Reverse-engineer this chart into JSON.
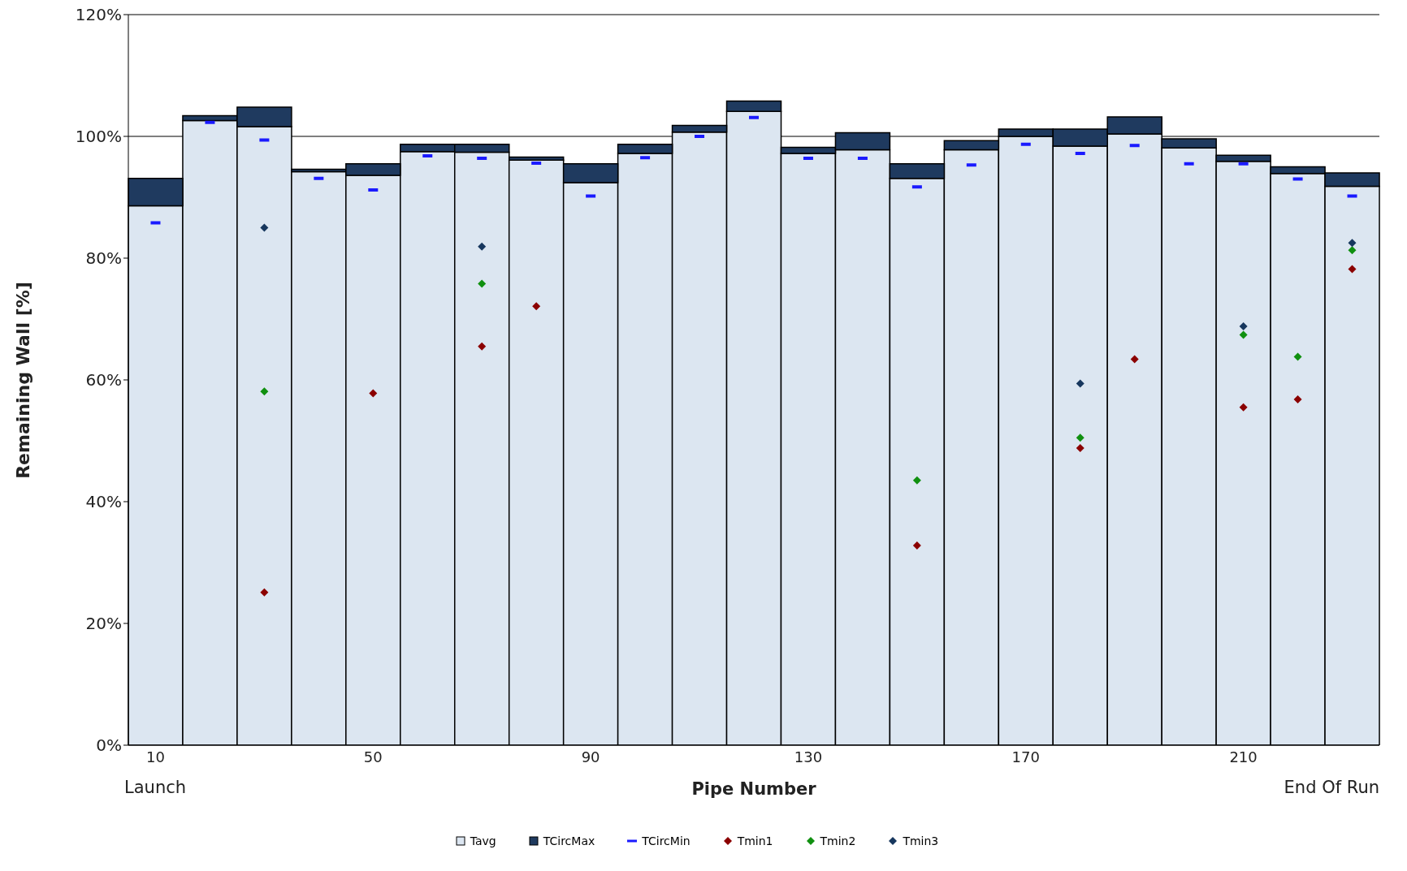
{
  "chart_data": {
    "type": "bar",
    "xlabel": "Pipe Number",
    "ylabel": "Remaining Wall [%]",
    "categories": [
      "10",
      null,
      null,
      null,
      "50",
      null,
      null,
      null,
      "90",
      null,
      null,
      null,
      "130",
      null,
      null,
      null,
      "170",
      null,
      null,
      null,
      "210",
      null,
      null
    ],
    "stacked": true,
    "series": [
      {
        "name": "Tavg",
        "color": "#dce6f1",
        "values": [
          88.6,
          102.6,
          101.6,
          94.2,
          93.6,
          97.5,
          97.4,
          96.1,
          92.4,
          97.2,
          100.7,
          104.1,
          97.2,
          97.8,
          93.1,
          97.8,
          100,
          98.4,
          100.4,
          98.1,
          95.9,
          93.9,
          91.8
        ]
      },
      {
        "name": "TCircMax",
        "color": "#1f3a5f",
        "values": [
          4.5,
          0.8,
          3.2,
          0.4,
          1.9,
          1.2,
          1.3,
          0.5,
          3.1,
          1.5,
          1.1,
          1.7,
          1.0,
          2.8,
          2.4,
          1.5,
          1.2,
          2.8,
          2.8,
          1.5,
          1.0,
          1.1,
          2.2
        ]
      },
      {
        "name": "TCircMin",
        "type": "scatter",
        "marker": "square",
        "color": "#1a1aff",
        "values": [
          85.8,
          102.3,
          99.4,
          93.1,
          91.2,
          96.8,
          96.4,
          95.6,
          90.2,
          96.5,
          100,
          103.1,
          96.4,
          96.4,
          91.7,
          95.3,
          98.7,
          97.2,
          98.5,
          95.5,
          95.5,
          93.0,
          90.2
        ]
      },
      {
        "name": "Tmin1",
        "type": "scatter",
        "marker": "diamond",
        "color": "#8b0000",
        "values": [
          null,
          null,
          25.1,
          null,
          57.8,
          null,
          65.5,
          72.1,
          null,
          null,
          null,
          null,
          null,
          null,
          32.8,
          null,
          null,
          48.8,
          63.4,
          null,
          55.5,
          56.8,
          78.2
        ]
      },
      {
        "name": "Tmin2",
        "type": "scatter",
        "marker": "diamond",
        "color": "#109010",
        "values": [
          null,
          null,
          58.1,
          null,
          null,
          null,
          75.8,
          null,
          null,
          null,
          null,
          null,
          null,
          null,
          43.5,
          null,
          null,
          50.5,
          null,
          null,
          67.4,
          63.8,
          81.3
        ]
      },
      {
        "name": "Tmin3",
        "type": "scatter",
        "marker": "diamond",
        "color": "#17375e",
        "values": [
          null,
          null,
          85.0,
          null,
          null,
          null,
          81.9,
          null,
          null,
          null,
          null,
          null,
          null,
          null,
          null,
          null,
          null,
          59.4,
          null,
          null,
          68.8,
          null,
          82.5
        ]
      }
    ],
    "ylim": [
      0,
      120
    ],
    "yticks": [
      {
        "value": 0,
        "label": "0%"
      },
      {
        "value": 20,
        "label": "20%"
      },
      {
        "value": 40,
        "label": "40%"
      },
      {
        "value": 60,
        "label": "60%"
      },
      {
        "value": 80,
        "label": "80%"
      },
      {
        "value": 100,
        "label": "100%"
      },
      {
        "value": 120,
        "label": "120%"
      }
    ],
    "grid": "y",
    "legend": "bottom",
    "annotations": [
      "Launch",
      "End Of Run"
    ]
  }
}
